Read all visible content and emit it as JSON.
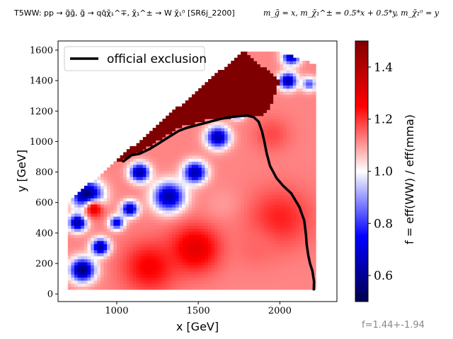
{
  "header": {
    "left": "T5WW: pp → g̃g̃, g̃ → qq̄χ̃₁^∓, χ̃₁^± → W χ̃₁⁰ [SR6j_2200]",
    "right": "m_g̃ = x, m_χ̃₁^± = 0.5*x + 0.5*y, m_χ̃₁⁰ = y"
  },
  "footnote": "f=1.44+-1.94",
  "colors": {
    "low": "#00004d",
    "mid_low": "#0000ff",
    "mid": "#ffffff",
    "mid_high": "#ff0000",
    "high": "#7f0000",
    "contour": "#000000"
  },
  "chart_data": {
    "type": "heatmap",
    "xlabel": "x [GeV]",
    "ylabel": "y [GeV]",
    "xlim": [
      640,
      2350
    ],
    "ylim": [
      -50,
      1660
    ],
    "xticks": [
      1000,
      1500,
      2000
    ],
    "yticks": [
      0,
      200,
      400,
      600,
      800,
      1000,
      1200,
      1400,
      1600
    ],
    "grid": false,
    "colorbar": {
      "label": "f = eff(WW) / eff(mma)",
      "range": [
        0.5,
        1.5
      ],
      "ticks": [
        0.6,
        0.8,
        1.0,
        1.2,
        1.4
      ]
    },
    "domain_polygon": [
      [
        700,
        40
      ],
      [
        2230,
        40
      ],
      [
        2230,
        1480
      ],
      [
        2210,
        1510
      ],
      [
        2000,
        1590
      ],
      [
        1780,
        1600
      ],
      [
        700,
        600
      ]
    ],
    "saturated_region": {
      "value": 1.5,
      "boundary": [
        [
          1040,
          880
        ],
        [
          1120,
          920
        ],
        [
          1250,
          1000
        ],
        [
          1400,
          1100
        ],
        [
          1550,
          1140
        ],
        [
          1700,
          1160
        ],
        [
          1800,
          1170
        ],
        [
          1870,
          1160
        ],
        [
          1930,
          1200
        ],
        [
          2000,
          1400
        ],
        [
          1780,
          1600
        ],
        [
          1000,
          880
        ]
      ]
    },
    "hotspots": [
      {
        "x": 820,
        "y": 650,
        "value": 0.52,
        "spread": 90
      },
      {
        "x": 760,
        "y": 470,
        "value": 0.6,
        "spread": 55
      },
      {
        "x": 790,
        "y": 160,
        "value": 0.55,
        "spread": 75
      },
      {
        "x": 900,
        "y": 310,
        "value": 0.6,
        "spread": 55
      },
      {
        "x": 1140,
        "y": 800,
        "value": 0.6,
        "spread": 60
      },
      {
        "x": 1080,
        "y": 560,
        "value": 0.62,
        "spread": 50
      },
      {
        "x": 1000,
        "y": 470,
        "value": 0.7,
        "spread": 45
      },
      {
        "x": 1320,
        "y": 640,
        "value": 0.62,
        "spread": 95
      },
      {
        "x": 1480,
        "y": 800,
        "value": 0.62,
        "spread": 70
      },
      {
        "x": 1620,
        "y": 1030,
        "value": 0.62,
        "spread": 70
      },
      {
        "x": 1740,
        "y": 1200,
        "value": 0.7,
        "spread": 45
      },
      {
        "x": 2050,
        "y": 1400,
        "value": 0.62,
        "spread": 55
      },
      {
        "x": 2070,
        "y": 1560,
        "value": 0.65,
        "spread": 55
      },
      {
        "x": 2180,
        "y": 1380,
        "value": 0.82,
        "spread": 45
      },
      {
        "x": 1480,
        "y": 300,
        "value": 1.3,
        "spread": 150
      },
      {
        "x": 2000,
        "y": 500,
        "value": 1.22,
        "spread": 190
      },
      {
        "x": 860,
        "y": 560,
        "value": 1.3,
        "spread": 60
      },
      {
        "x": 1200,
        "y": 180,
        "value": 1.26,
        "spread": 160
      },
      {
        "x": 1950,
        "y": 1050,
        "value": 1.18,
        "spread": 110
      },
      {
        "x": 1650,
        "y": 600,
        "value": 1.1,
        "spread": 100
      },
      {
        "x": 1850,
        "y": 300,
        "value": 1.15,
        "spread": 120
      }
    ],
    "series": [
      {
        "name": "official exclusion",
        "x": [
          1040,
          1090,
          1140,
          1200,
          1260,
          1320,
          1380,
          1430,
          1500,
          1570,
          1640,
          1700,
          1760,
          1800,
          1840,
          1870,
          1890,
          1905,
          1920,
          1940,
          1980,
          2020,
          2070,
          2120,
          2150,
          2160,
          2165,
          2175,
          2185,
          2200,
          2210,
          2208
        ],
        "y": [
          870,
          910,
          920,
          950,
          990,
          1030,
          1070,
          1090,
          1110,
          1130,
          1150,
          1160,
          1168,
          1170,
          1160,
          1130,
          1070,
          1000,
          920,
          840,
          760,
          710,
          660,
          570,
          480,
          390,
          320,
          250,
          200,
          150,
          80,
          30
        ]
      }
    ]
  }
}
